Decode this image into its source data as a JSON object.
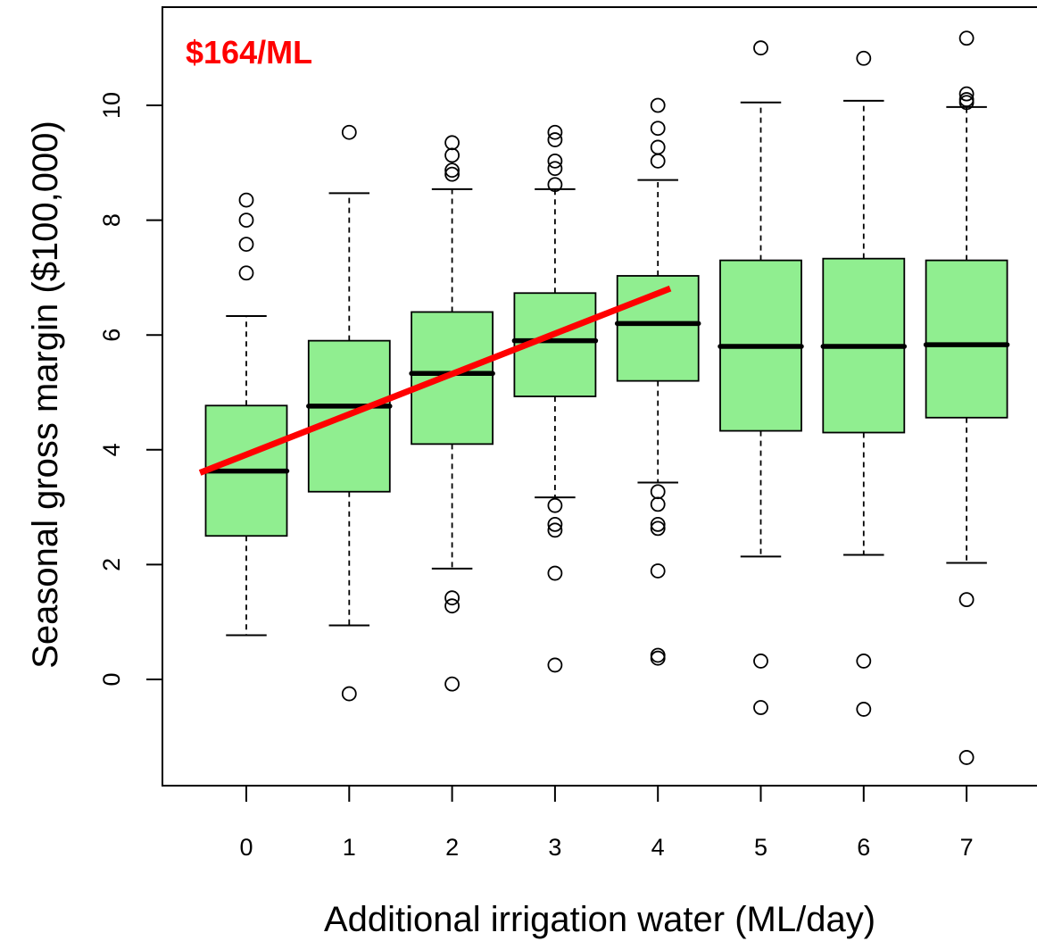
{
  "chart_data": {
    "type": "boxplot",
    "xlabel": "Additional irrigation water (ML/day)",
    "ylabel": "Seasonal gross margin ($100,000)",
    "categories": [
      "0",
      "1",
      "2",
      "3",
      "4",
      "5",
      "6",
      "7"
    ],
    "yticks": [
      "0",
      "2",
      "4",
      "6",
      "8",
      "10"
    ],
    "ylim": [
      -1.85,
      11.7
    ],
    "grid": false,
    "box_color": "#90ee90",
    "boxes": [
      {
        "x": 0,
        "whisker_low": 0.77,
        "q1": 2.5,
        "median": 3.63,
        "q3": 4.77,
        "whisker_high": 6.33,
        "outliers": [
          7.08,
          7.58,
          8.0,
          8.35
        ]
      },
      {
        "x": 1,
        "whisker_low": 0.94,
        "q1": 3.27,
        "median": 4.76,
        "q3": 5.9,
        "whisker_high": 8.47,
        "outliers": [
          9.53,
          -0.25
        ]
      },
      {
        "x": 2,
        "whisker_low": 1.93,
        "q1": 4.1,
        "median": 5.33,
        "q3": 6.4,
        "whisker_high": 8.54,
        "outliers": [
          8.8,
          8.87,
          9.13,
          9.35,
          1.42,
          1.28,
          -0.08
        ]
      },
      {
        "x": 3,
        "whisker_low": 3.17,
        "q1": 4.93,
        "median": 5.9,
        "q3": 6.73,
        "whisker_high": 8.54,
        "outliers": [
          8.62,
          8.9,
          9.03,
          9.4,
          9.53,
          3.03,
          2.7,
          2.6,
          1.85,
          0.25
        ]
      },
      {
        "x": 4,
        "whisker_low": 3.43,
        "q1": 5.2,
        "median": 6.2,
        "q3": 7.03,
        "whisker_high": 8.7,
        "outliers": [
          9.03,
          9.27,
          9.6,
          10.0,
          3.27,
          3.05,
          2.7,
          2.63,
          1.89,
          0.42,
          0.37
        ]
      },
      {
        "x": 5,
        "whisker_low": 2.14,
        "q1": 4.33,
        "median": 5.8,
        "q3": 7.3,
        "whisker_high": 10.05,
        "outliers": [
          11.0,
          0.32,
          -0.49
        ]
      },
      {
        "x": 6,
        "whisker_low": 2.17,
        "q1": 4.3,
        "median": 5.8,
        "q3": 7.33,
        "whisker_high": 10.08,
        "outliers": [
          10.82,
          0.32,
          -0.52
        ]
      },
      {
        "x": 7,
        "whisker_low": 2.03,
        "q1": 4.56,
        "median": 5.83,
        "q3": 7.3,
        "whisker_high": 9.97,
        "outliers": [
          10.05,
          10.1,
          10.2,
          11.17,
          1.39,
          -1.36
        ]
      }
    ],
    "trend_line": {
      "color": "#ff0000",
      "x": [
        -0.45,
        4.12
      ],
      "y": [
        3.6,
        6.81
      ]
    },
    "annotation": {
      "text": "$164/ML",
      "color": "#ff0000"
    }
  }
}
